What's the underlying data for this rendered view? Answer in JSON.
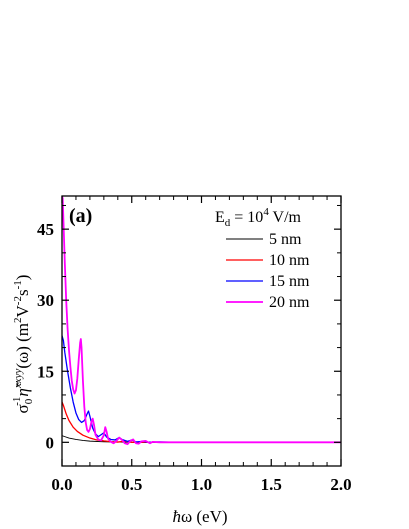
{
  "chart_data": {
    "type": "line",
    "panel_label": "(a)",
    "legend_title": {
      "base": "E",
      "sub": "d",
      "mid": " = 10",
      "sup": "4",
      "tail": " V/m"
    },
    "xlabel": {
      "hbar": "ħ",
      "rest": "ω (eV)"
    },
    "ylabel": {
      "sigma": "σ",
      "sigma_sub": "0",
      "sigma_sup": "-1",
      "eta": "η̃",
      "eta_sup": "xxyy",
      "omega": "(ω) (m",
      "unit_sup1": "2",
      "unit_mid": "V",
      "unit_sup2": "-2",
      "unit_mid2": "s",
      "unit_sup3": "-1",
      "unit_end": ")"
    },
    "xlim": [
      0.0,
      2.0
    ],
    "ylim": [
      -5,
      52
    ],
    "x_ticks": [
      "0.0",
      "0.5",
      "1.0",
      "1.5",
      "2.0"
    ],
    "x_tick_values": [
      0.0,
      0.5,
      1.0,
      1.5,
      2.0
    ],
    "y_ticks": [
      "0",
      "15",
      "30",
      "45"
    ],
    "y_tick_values": [
      0,
      15,
      30,
      45
    ],
    "grid": false,
    "legend_position": "top-right",
    "series": [
      {
        "name": "5 nm",
        "color": "#000000",
        "points": [
          [
            0.0,
            1.4
          ],
          [
            0.02,
            1.2
          ],
          [
            0.05,
            0.9
          ],
          [
            0.1,
            0.6
          ],
          [
            0.15,
            0.4
          ],
          [
            0.2,
            0.25
          ],
          [
            0.3,
            0.1
          ],
          [
            0.4,
            0.05
          ],
          [
            0.5,
            0.02
          ],
          [
            0.6,
            0.0
          ],
          [
            2.0,
            0.0
          ]
        ]
      },
      {
        "name": "10 nm",
        "color": "#ff0000",
        "points": [
          [
            0.0,
            8.5
          ],
          [
            0.01,
            7.8
          ],
          [
            0.03,
            6.0
          ],
          [
            0.05,
            4.6
          ],
          [
            0.08,
            3.2
          ],
          [
            0.11,
            2.3
          ],
          [
            0.15,
            1.5
          ],
          [
            0.2,
            0.9
          ],
          [
            0.25,
            0.5
          ],
          [
            0.3,
            0.3
          ],
          [
            0.35,
            0.15
          ],
          [
            0.4,
            0.05
          ],
          [
            0.45,
            0.25
          ],
          [
            0.5,
            0.0
          ],
          [
            0.6,
            0.0
          ],
          [
            2.0,
            0.0
          ]
        ]
      },
      {
        "name": "15 nm",
        "color": "#0000ff",
        "points": [
          [
            0.0,
            22.5
          ],
          [
            0.01,
            21.5
          ],
          [
            0.02,
            19.0
          ],
          [
            0.04,
            15.0
          ],
          [
            0.06,
            11.5
          ],
          [
            0.08,
            8.5
          ],
          [
            0.1,
            6.2
          ],
          [
            0.12,
            4.8
          ],
          [
            0.14,
            4.2
          ],
          [
            0.16,
            4.6
          ],
          [
            0.18,
            6.0
          ],
          [
            0.19,
            6.6
          ],
          [
            0.2,
            5.5
          ],
          [
            0.22,
            3.0
          ],
          [
            0.24,
            1.8
          ],
          [
            0.26,
            1.2
          ],
          [
            0.28,
            1.6
          ],
          [
            0.3,
            2.0
          ],
          [
            0.32,
            1.1
          ],
          [
            0.35,
            0.6
          ],
          [
            0.38,
            0.5
          ],
          [
            0.41,
            1.0
          ],
          [
            0.43,
            0.6
          ],
          [
            0.47,
            0.2
          ],
          [
            0.5,
            0.5
          ],
          [
            0.53,
            0.1
          ],
          [
            0.58,
            0.2
          ],
          [
            0.62,
            0.0
          ],
          [
            0.7,
            0.1
          ],
          [
            0.8,
            0.0
          ],
          [
            2.0,
            0.0
          ]
        ]
      },
      {
        "name": "20 nm",
        "color": "#ff00ff",
        "points": [
          [
            0.0,
            52.0
          ],
          [
            0.005,
            51.5
          ],
          [
            0.01,
            47.0
          ],
          [
            0.02,
            38.0
          ],
          [
            0.03,
            30.0
          ],
          [
            0.04,
            24.0
          ],
          [
            0.05,
            19.5
          ],
          [
            0.06,
            16.0
          ],
          [
            0.07,
            13.0
          ],
          [
            0.08,
            11.2
          ],
          [
            0.09,
            10.3
          ],
          [
            0.1,
            11.0
          ],
          [
            0.11,
            13.5
          ],
          [
            0.12,
            17.5
          ],
          [
            0.13,
            21.0
          ],
          [
            0.135,
            21.8
          ],
          [
            0.14,
            20.0
          ],
          [
            0.15,
            13.0
          ],
          [
            0.16,
            7.5
          ],
          [
            0.17,
            4.2
          ],
          [
            0.18,
            2.6
          ],
          [
            0.19,
            2.2
          ],
          [
            0.2,
            2.8
          ],
          [
            0.21,
            4.2
          ],
          [
            0.22,
            5.0
          ],
          [
            0.23,
            3.6
          ],
          [
            0.24,
            1.6
          ],
          [
            0.26,
            0.6
          ],
          [
            0.28,
            0.4
          ],
          [
            0.3,
            1.5
          ],
          [
            0.31,
            3.2
          ],
          [
            0.32,
            2.2
          ],
          [
            0.33,
            0.8
          ],
          [
            0.35,
            0.1
          ],
          [
            0.37,
            -0.2
          ],
          [
            0.39,
            0.3
          ],
          [
            0.41,
            1.0
          ],
          [
            0.43,
            0.5
          ],
          [
            0.45,
            -0.2
          ],
          [
            0.47,
            -0.4
          ],
          [
            0.49,
            0.3
          ],
          [
            0.51,
            0.6
          ],
          [
            0.53,
            -0.2
          ],
          [
            0.55,
            -0.3
          ],
          [
            0.57,
            0.2
          ],
          [
            0.6,
            0.3
          ],
          [
            0.63,
            -0.2
          ],
          [
            0.65,
            0.1
          ],
          [
            0.7,
            0.0
          ],
          [
            2.0,
            0.0
          ]
        ]
      }
    ]
  }
}
